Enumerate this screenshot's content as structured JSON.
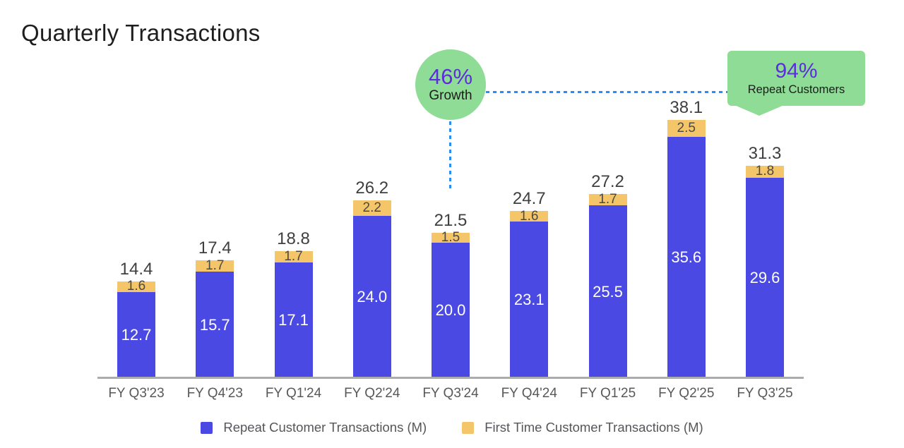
{
  "title": "Quarterly Transactions",
  "annotations": {
    "growth_badge": {
      "value": "46%",
      "label": "Growth"
    },
    "repeat_badge": {
      "value": "94%",
      "label": "Repeat Customers"
    }
  },
  "legend": [
    {
      "label": "Repeat Customer Transactions (M)",
      "color": "#4b49e4"
    },
    {
      "label": "First Time Customer Transactions (M)",
      "color": "#f5c669"
    }
  ],
  "colors": {
    "repeat_bar": "#4b49e4",
    "first_time_bar": "#f5c669",
    "annotation_green": "#8edc96",
    "annotation_purple": "#5b2edc",
    "connector_blue": "#2e8cf0",
    "axis_gray": "#abacae"
  },
  "chart_data": {
    "type": "bar",
    "stacked": true,
    "title": "Quarterly Transactions",
    "xlabel": "",
    "ylabel": "",
    "grid": false,
    "legend_position": "bottom",
    "ylim": [
      0,
      40
    ],
    "categories": [
      "FY Q3'23",
      "FY Q4'23",
      "FY Q1'24",
      "FY Q2'24",
      "FY Q3'24",
      "FY Q4'24",
      "FY Q1'25",
      "FY Q2'25",
      "FY Q3'25"
    ],
    "series": [
      {
        "name": "Repeat Customer Transactions (M)",
        "color": "#4b49e4",
        "values": [
          12.7,
          15.7,
          17.1,
          24.0,
          20.0,
          23.1,
          25.5,
          35.6,
          29.6
        ]
      },
      {
        "name": "First Time Customer Transactions (M)",
        "color": "#f5c669",
        "values": [
          1.6,
          1.7,
          1.7,
          2.2,
          1.5,
          1.6,
          1.7,
          2.5,
          1.8
        ]
      }
    ],
    "totals": [
      14.4,
      17.4,
      18.8,
      26.2,
      21.5,
      24.7,
      27.2,
      38.1,
      31.3
    ],
    "annotations": [
      {
        "text": "46% Growth",
        "attached_to": "FY Q3'24"
      },
      {
        "text": "94% Repeat Customers",
        "attached_to": "FY Q3'25"
      }
    ]
  }
}
